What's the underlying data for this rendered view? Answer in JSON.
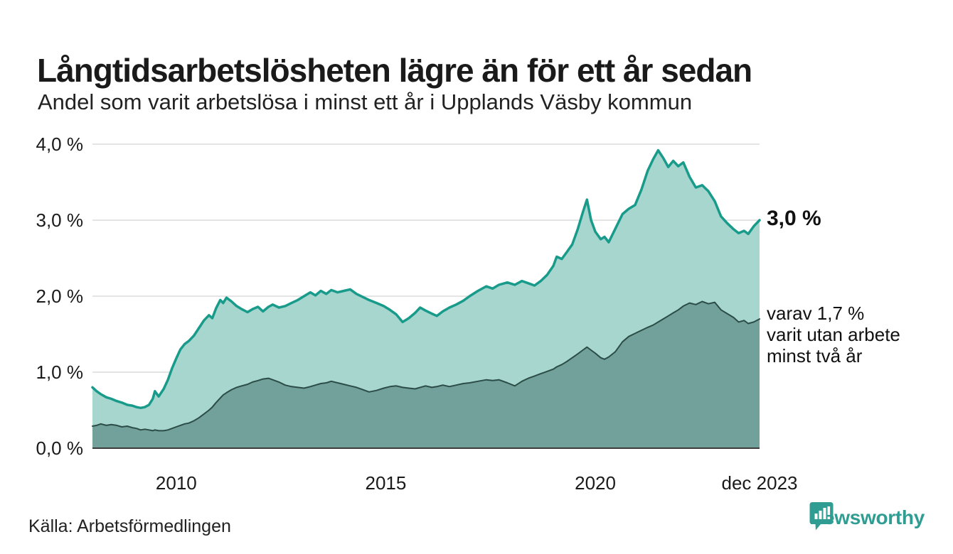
{
  "header": {
    "title": "Långtidsarbetslösheten lägre än för ett år sedan",
    "subtitle": "Andel som varit arbetslösa i minst ett år i Upplands Väsby kommun"
  },
  "annotations": {
    "latest_total": "3,0 %",
    "secondary_line1": "varav 1,7 %",
    "secondary_line2": "varit utan arbete",
    "secondary_line3": "minst två år"
  },
  "source": {
    "label": "Källa: Arbetsförmedlingen"
  },
  "branding": {
    "name": "Newsworthy",
    "logo_icon": "bar-chart-speech-bubble-icon",
    "color": "#2f9d92"
  },
  "chart_data": {
    "type": "area",
    "x_unit": "year (decimal, monthly data)",
    "x_range": [
      2008.0,
      2023.92
    ],
    "ylim": [
      0,
      4.0
    ],
    "grid": "horizontal",
    "y_ticks": [
      {
        "value": 4.0,
        "label": "4,0 %"
      },
      {
        "value": 3.0,
        "label": "3,0 %"
      },
      {
        "value": 2.0,
        "label": "2,0 %"
      },
      {
        "value": 1.0,
        "label": "1,0 %"
      },
      {
        "value": 0.0,
        "label": "0,0 %"
      }
    ],
    "x_ticks": [
      {
        "value": 2010,
        "label": "2010"
      },
      {
        "value": 2015,
        "label": "2015"
      },
      {
        "value": 2020,
        "label": "2020"
      },
      {
        "value": 2023.92,
        "label": "dec 2023"
      }
    ],
    "latest_values": {
      "unemployed_min_one_year_pct": 3.0,
      "unemployed_min_two_years_pct": 1.7
    },
    "x": [
      2008.0,
      2008.1,
      2008.2,
      2008.33,
      2008.45,
      2008.58,
      2008.7,
      2008.83,
      2008.95,
      2009.05,
      2009.15,
      2009.25,
      2009.35,
      2009.44,
      2009.49,
      2009.58,
      2009.7,
      2009.8,
      2009.9,
      2010.0,
      2010.1,
      2010.2,
      2010.3,
      2010.42,
      2010.54,
      2010.66,
      2010.78,
      2010.86,
      2010.95,
      2011.05,
      2011.12,
      2011.2,
      2011.32,
      2011.44,
      2011.56,
      2011.7,
      2011.82,
      2011.95,
      2012.07,
      2012.2,
      2012.3,
      2012.45,
      2012.6,
      2012.75,
      2012.9,
      2013.05,
      2013.2,
      2013.32,
      2013.45,
      2013.58,
      2013.7,
      2013.85,
      2014.0,
      2014.15,
      2014.3,
      2014.45,
      2014.6,
      2014.78,
      2014.95,
      2015.1,
      2015.25,
      2015.4,
      2015.55,
      2015.7,
      2015.82,
      2015.95,
      2016.1,
      2016.22,
      2016.36,
      2016.52,
      2016.68,
      2016.85,
      2017.0,
      2017.2,
      2017.4,
      2017.55,
      2017.7,
      2017.9,
      2018.08,
      2018.25,
      2018.4,
      2018.55,
      2018.7,
      2018.85,
      2019.0,
      2019.08,
      2019.2,
      2019.32,
      2019.45,
      2019.58,
      2019.7,
      2019.8,
      2019.9,
      2020.0,
      2020.13,
      2020.22,
      2020.32,
      2020.48,
      2020.65,
      2020.8,
      2020.95,
      2021.1,
      2021.25,
      2021.38,
      2021.5,
      2021.62,
      2021.74,
      2021.86,
      2021.98,
      2022.1,
      2022.25,
      2022.4,
      2022.55,
      2022.7,
      2022.85,
      2023.0,
      2023.15,
      2023.3,
      2023.42,
      2023.55,
      2023.65,
      2023.78,
      2023.92
    ],
    "series": [
      {
        "name": "Andel arbetslösa minst ett år",
        "line_color": "#189b8a",
        "fill_color": "#a6d6ce",
        "line_width": 3.5,
        "values": [
          0.8,
          0.75,
          0.71,
          0.67,
          0.65,
          0.62,
          0.6,
          0.57,
          0.56,
          0.54,
          0.53,
          0.54,
          0.57,
          0.65,
          0.75,
          0.68,
          0.78,
          0.9,
          1.05,
          1.18,
          1.3,
          1.37,
          1.41,
          1.48,
          1.58,
          1.68,
          1.75,
          1.71,
          1.84,
          1.95,
          1.91,
          1.98,
          1.93,
          1.87,
          1.83,
          1.79,
          1.83,
          1.86,
          1.8,
          1.86,
          1.89,
          1.85,
          1.87,
          1.91,
          1.95,
          2.0,
          2.05,
          2.01,
          2.07,
          2.03,
          2.08,
          2.05,
          2.07,
          2.09,
          2.03,
          1.99,
          1.95,
          1.91,
          1.87,
          1.82,
          1.76,
          1.66,
          1.71,
          1.78,
          1.85,
          1.81,
          1.77,
          1.74,
          1.8,
          1.85,
          1.89,
          1.94,
          2.0,
          2.07,
          2.13,
          2.1,
          2.15,
          2.18,
          2.15,
          2.2,
          2.17,
          2.14,
          2.2,
          2.28,
          2.4,
          2.52,
          2.49,
          2.58,
          2.68,
          2.88,
          3.1,
          3.27,
          3.0,
          2.85,
          2.75,
          2.78,
          2.71,
          2.89,
          3.08,
          3.15,
          3.2,
          3.4,
          3.65,
          3.8,
          3.92,
          3.82,
          3.7,
          3.78,
          3.71,
          3.76,
          3.57,
          3.43,
          3.46,
          3.38,
          3.25,
          3.05,
          2.96,
          2.88,
          2.83,
          2.86,
          2.82,
          2.92,
          3.0
        ]
      },
      {
        "name": "varav utan arbete minst två år",
        "line_color": "#2c4d47",
        "fill_color": "#72a09a",
        "line_width": 2,
        "values": [
          0.29,
          0.3,
          0.32,
          0.3,
          0.31,
          0.3,
          0.28,
          0.29,
          0.27,
          0.26,
          0.24,
          0.25,
          0.24,
          0.23,
          0.24,
          0.23,
          0.23,
          0.24,
          0.26,
          0.28,
          0.3,
          0.32,
          0.33,
          0.36,
          0.4,
          0.45,
          0.5,
          0.54,
          0.6,
          0.66,
          0.7,
          0.73,
          0.77,
          0.8,
          0.82,
          0.84,
          0.87,
          0.89,
          0.91,
          0.92,
          0.9,
          0.87,
          0.83,
          0.81,
          0.8,
          0.79,
          0.81,
          0.83,
          0.85,
          0.86,
          0.88,
          0.86,
          0.84,
          0.82,
          0.8,
          0.77,
          0.74,
          0.76,
          0.79,
          0.81,
          0.82,
          0.8,
          0.79,
          0.78,
          0.8,
          0.82,
          0.8,
          0.81,
          0.83,
          0.81,
          0.83,
          0.85,
          0.86,
          0.88,
          0.9,
          0.89,
          0.9,
          0.86,
          0.82,
          0.88,
          0.92,
          0.95,
          0.98,
          1.01,
          1.04,
          1.07,
          1.1,
          1.14,
          1.19,
          1.24,
          1.29,
          1.33,
          1.29,
          1.25,
          1.19,
          1.17,
          1.2,
          1.27,
          1.4,
          1.47,
          1.51,
          1.55,
          1.59,
          1.62,
          1.66,
          1.7,
          1.74,
          1.78,
          1.82,
          1.87,
          1.91,
          1.89,
          1.93,
          1.9,
          1.92,
          1.82,
          1.77,
          1.72,
          1.66,
          1.68,
          1.64,
          1.66,
          1.7
        ]
      }
    ],
    "colors": {
      "gridline": "#dcdcdc",
      "baseline": "#3c3c3c",
      "tick_text": "#1a1a1a"
    }
  }
}
